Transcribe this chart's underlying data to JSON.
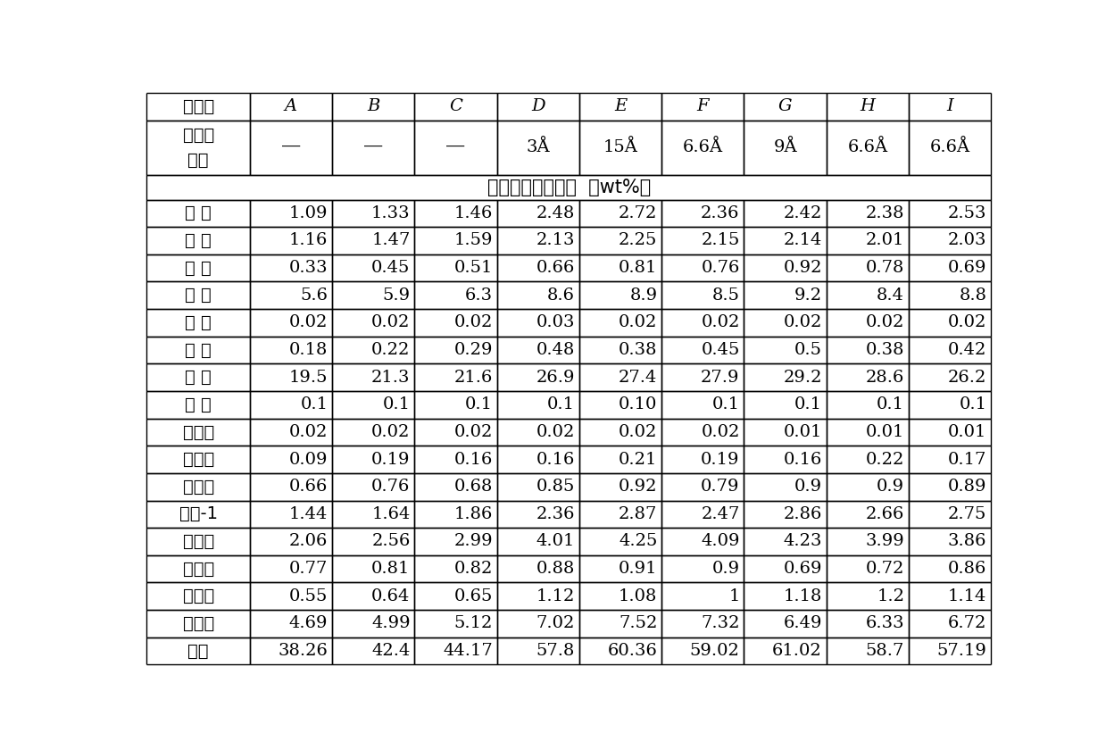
{
  "header_row1": [
    "却化剂",
    "A",
    "B",
    "C",
    "D",
    "E",
    "F",
    "G",
    "H",
    "I"
  ],
  "header_row2_col0": "分子筛\n孔径",
  "header_row2_data": [
    "—",
    "—",
    "—",
    "3Å",
    "15Å",
    "6.6Å",
    "9Å",
    "6.6Å",
    "6.6Å"
  ],
  "merged_row_text": "低碳烯烃烷烃组成（wt%）",
  "rows": [
    [
      "氢 气",
      "1.09",
      "1.33",
      "1.46",
      "2.48",
      "2.72",
      "2.36",
      "2.42",
      "2.38",
      "2.53"
    ],
    [
      "甲 烷",
      "1.16",
      "1.47",
      "1.59",
      "2.13",
      "2.25",
      "2.15",
      "2.14",
      "2.01",
      "2.03"
    ],
    [
      "乙 烷",
      "0.33",
      "0.45",
      "0.51",
      "0.66",
      "0.81",
      "0.76",
      "0.92",
      "0.78",
      "0.69"
    ],
    [
      "乙 烯",
      "5.6",
      "5.9",
      "6.3",
      "8.6",
      "8.9",
      "8.5",
      "9.2",
      "8.4",
      "8.8"
    ],
    [
      "乙 炔",
      "0.02",
      "0.02",
      "0.02",
      "0.03",
      "0.02",
      "0.02",
      "0.02",
      "0.02",
      "0.02"
    ],
    [
      "丙 烷",
      "0.18",
      "0.22",
      "0.29",
      "0.48",
      "0.38",
      "0.45",
      "0.5",
      "0.38",
      "0.42"
    ],
    [
      "丙 烯",
      "19.5",
      "21.3",
      "21.6",
      "26.9",
      "27.4",
      "27.9",
      "29.2",
      "28.6",
      "26.2"
    ],
    [
      "丙 炔",
      "0.1",
      "0.1",
      "0.1",
      "0.1",
      "0.10",
      "0.1",
      "0.1",
      "0.1",
      "0.1"
    ],
    [
      "丙二烯",
      "0.02",
      "0.02",
      "0.02",
      "0.02",
      "0.02",
      "0.02",
      "0.01",
      "0.01",
      "0.01"
    ],
    [
      "异丁烷",
      "0.09",
      "0.19",
      "0.16",
      "0.16",
      "0.21",
      "0.19",
      "0.16",
      "0.22",
      "0.17"
    ],
    [
      "正丁烷",
      "0.66",
      "0.76",
      "0.68",
      "0.85",
      "0.92",
      "0.79",
      "0.9",
      "0.9",
      "0.89"
    ],
    [
      "丁烯-1",
      "1.44",
      "1.64",
      "1.86",
      "2.36",
      "2.87",
      "2.47",
      "2.86",
      "2.66",
      "2.75"
    ],
    [
      "异丁烯",
      "2.06",
      "2.56",
      "2.99",
      "4.01",
      "4.25",
      "4.09",
      "4.23",
      "3.99",
      "3.86"
    ],
    [
      "反丁烯",
      "0.77",
      "0.81",
      "0.82",
      "0.88",
      "0.91",
      "0.9",
      "0.69",
      "0.72",
      "0.86"
    ],
    [
      "顺丁烯",
      "0.55",
      "0.64",
      "0.65",
      "1.12",
      "1.08",
      "1",
      "1.18",
      "1.2",
      "1.14"
    ],
    [
      "丁二烯",
      "4.69",
      "4.99",
      "5.12",
      "7.02",
      "7.52",
      "7.32",
      "6.49",
      "6.33",
      "6.72"
    ],
    [
      "总计",
      "38.26",
      "42.4",
      "44.17",
      "57.8",
      "60.36",
      "59.02",
      "61.02",
      "58.7",
      "57.19"
    ]
  ],
  "col_widths_rel": [
    1.25,
    1.0,
    1.0,
    1.0,
    1.0,
    1.0,
    1.0,
    1.0,
    1.0,
    1.0
  ],
  "background_color": "#ffffff",
  "border_color": "#000000",
  "font_size_header": 14,
  "font_size_body": 14,
  "font_size_merged": 15,
  "row_units": [
    1.0,
    2.0,
    0.9,
    1.0,
    1.0,
    1.0,
    1.0,
    1.0,
    1.0,
    1.0,
    1.0,
    1.0,
    1.0,
    1.0,
    1.0,
    1.0,
    1.0,
    1.0,
    1.0,
    1.0
  ]
}
